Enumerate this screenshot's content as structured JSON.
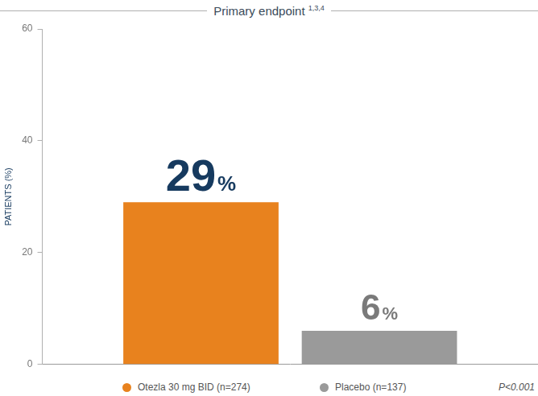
{
  "chart_data": {
    "type": "bar",
    "title": "Primary endpoint 1,3,4",
    "ylabel": "PATIENTS (%)",
    "categories": [
      null
    ],
    "series": [
      {
        "name": "Otezla 30 mg BID (n=274)",
        "color": "#e8821e",
        "values": [
          29
        ],
        "value_labels": [
          "29%"
        ]
      },
      {
        "name": "Placebo (n=137)",
        "color": "#9a9a9a",
        "values": [
          6
        ],
        "value_labels": [
          "6%"
        ]
      }
    ],
    "ylim": [
      0,
      60
    ],
    "yticks": [
      0,
      20,
      40,
      60
    ],
    "grid": false,
    "legend": "bottom",
    "data_labels": true,
    "tick_labels": "y",
    "annotations": [
      "P<0.001"
    ]
  }
}
